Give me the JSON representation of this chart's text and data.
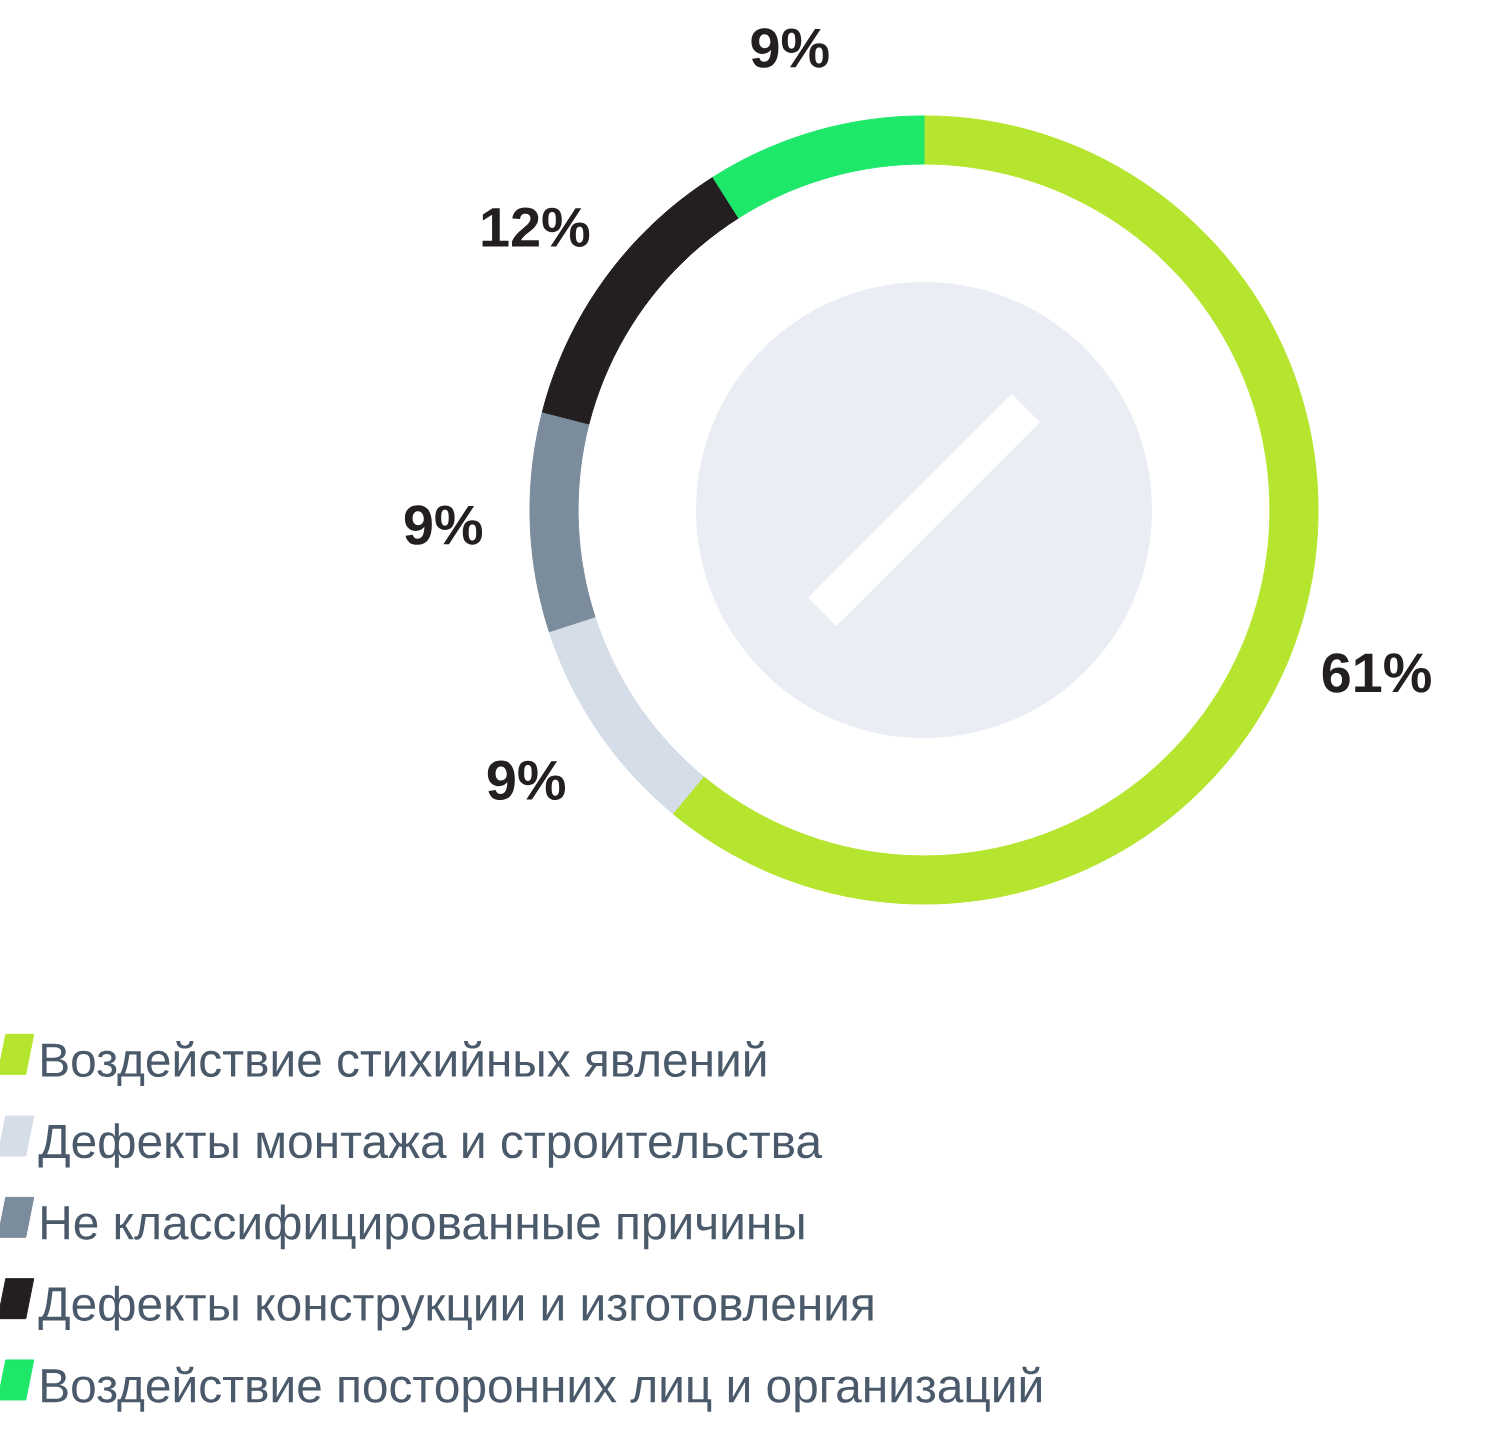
{
  "chart_data": {
    "type": "donut",
    "categories": [
      "Воздействие стихийных явлений",
      "Дефекты монтажа и строительства",
      "Не классифицированные причины",
      "Дефекты конструкции и изготовления",
      "Воздействие посторонних лиц и организаций"
    ],
    "values": [
      61,
      9,
      9,
      12,
      9
    ],
    "value_labels": [
      "61%",
      "9%",
      "9%",
      "12%",
      "9%"
    ],
    "colors": [
      "#b5e52e",
      "#d5dde8",
      "#7b8c9c",
      "#231f20",
      "#1ee86a"
    ],
    "legend": "bottom left"
  }
}
